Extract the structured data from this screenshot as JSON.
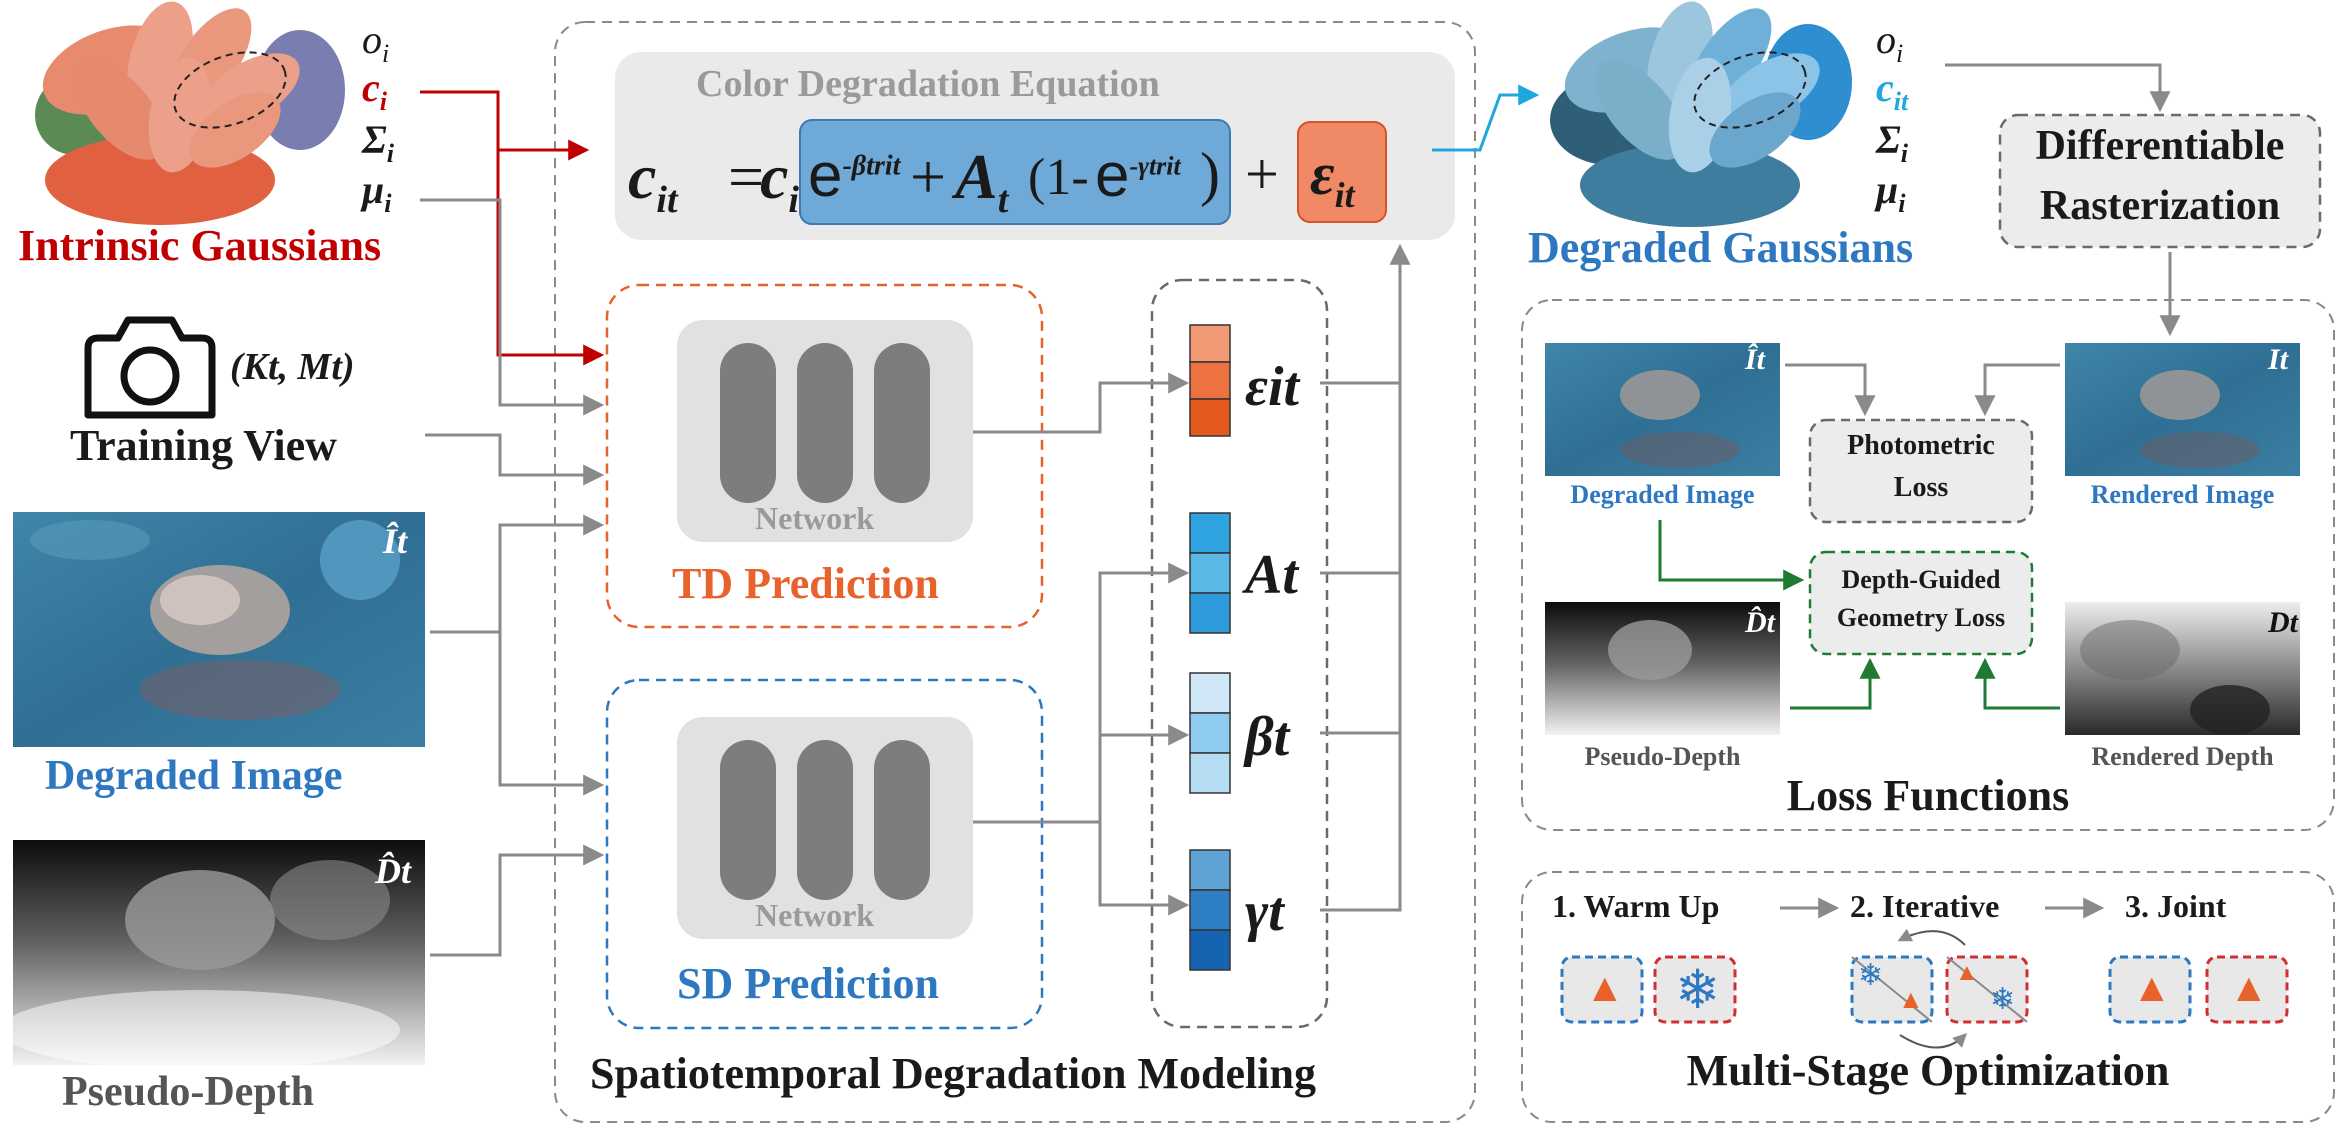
{
  "title_equation": "Color Degradation Equation",
  "equation": {
    "lhs": "c",
    "lhs_sub": "it",
    "eq": "=",
    "ci": "c",
    "ci_sub": "i",
    "exp1_base": "e",
    "exp1_pow": "-βtrit",
    "plus1": "+",
    "At": "A",
    "At_sub": "t",
    "paren_open": "(1-",
    "exp2_base": "e",
    "exp2_pow": "-γtrit",
    "paren_close": ")",
    "plus2": "+",
    "eps": "ε",
    "eps_sub": "it"
  },
  "intrinsic": {
    "label": "Intrinsic Gaussians",
    "o": "o",
    "o_sub": "i",
    "c": "c",
    "c_sub": "i",
    "sigma": "Σ",
    "sigma_sub": "i",
    "mu": "μ",
    "mu_sub": "i"
  },
  "degraded_gaussians": {
    "label": "Degraded Gaussians",
    "o": "o",
    "o_sub": "i",
    "c": "c",
    "c_sub": "it",
    "sigma": "Σ",
    "sigma_sub": "i",
    "mu": "μ",
    "mu_sub": "i"
  },
  "camera": {
    "params": "(Kt, Mt)",
    "label": "Training View"
  },
  "left_images": {
    "degraded_label": "Degraded Image",
    "degraded_tag": "Ît",
    "depth_label": "Pseudo-Depth",
    "depth_tag": "D̂t"
  },
  "td": {
    "network": "Network",
    "label": "TD Prediction"
  },
  "sd": {
    "network": "Network",
    "label": "SD Prediction"
  },
  "outputs": {
    "eps": "εit",
    "A": "At",
    "beta": "βt",
    "gamma": "γt"
  },
  "st_label": "Spatiotemporal Degradation Modeling",
  "raster": {
    "line1": "Differentiable",
    "line2": "Rasterization"
  },
  "loss": {
    "title": "Loss Functions",
    "degraded_image": "Degraded Image",
    "rendered_image": "Rendered Image",
    "pseudo_depth": "Pseudo-Depth",
    "rendered_depth": "Rendered Depth",
    "photometric_1": "Photometric",
    "photometric_2": "Loss",
    "depth_1": "Depth-Guided",
    "depth_2": "Geometry Loss",
    "tag_Ihat": "Ît",
    "tag_I": "It",
    "tag_Dhat": "D̂t",
    "tag_D": "Dt"
  },
  "multistage": {
    "title": "Multi-Stage Optimization",
    "step1": "1. Warm Up",
    "step2": "2. Iterative",
    "step3": "3. Joint"
  },
  "colors": {
    "red": "#c00000",
    "blue_text": "#2e78c2",
    "orange": "#e8622c",
    "green": "#1f7a33",
    "gray_arrow": "#8a8a8a",
    "cyan": "#1fa7e0"
  }
}
